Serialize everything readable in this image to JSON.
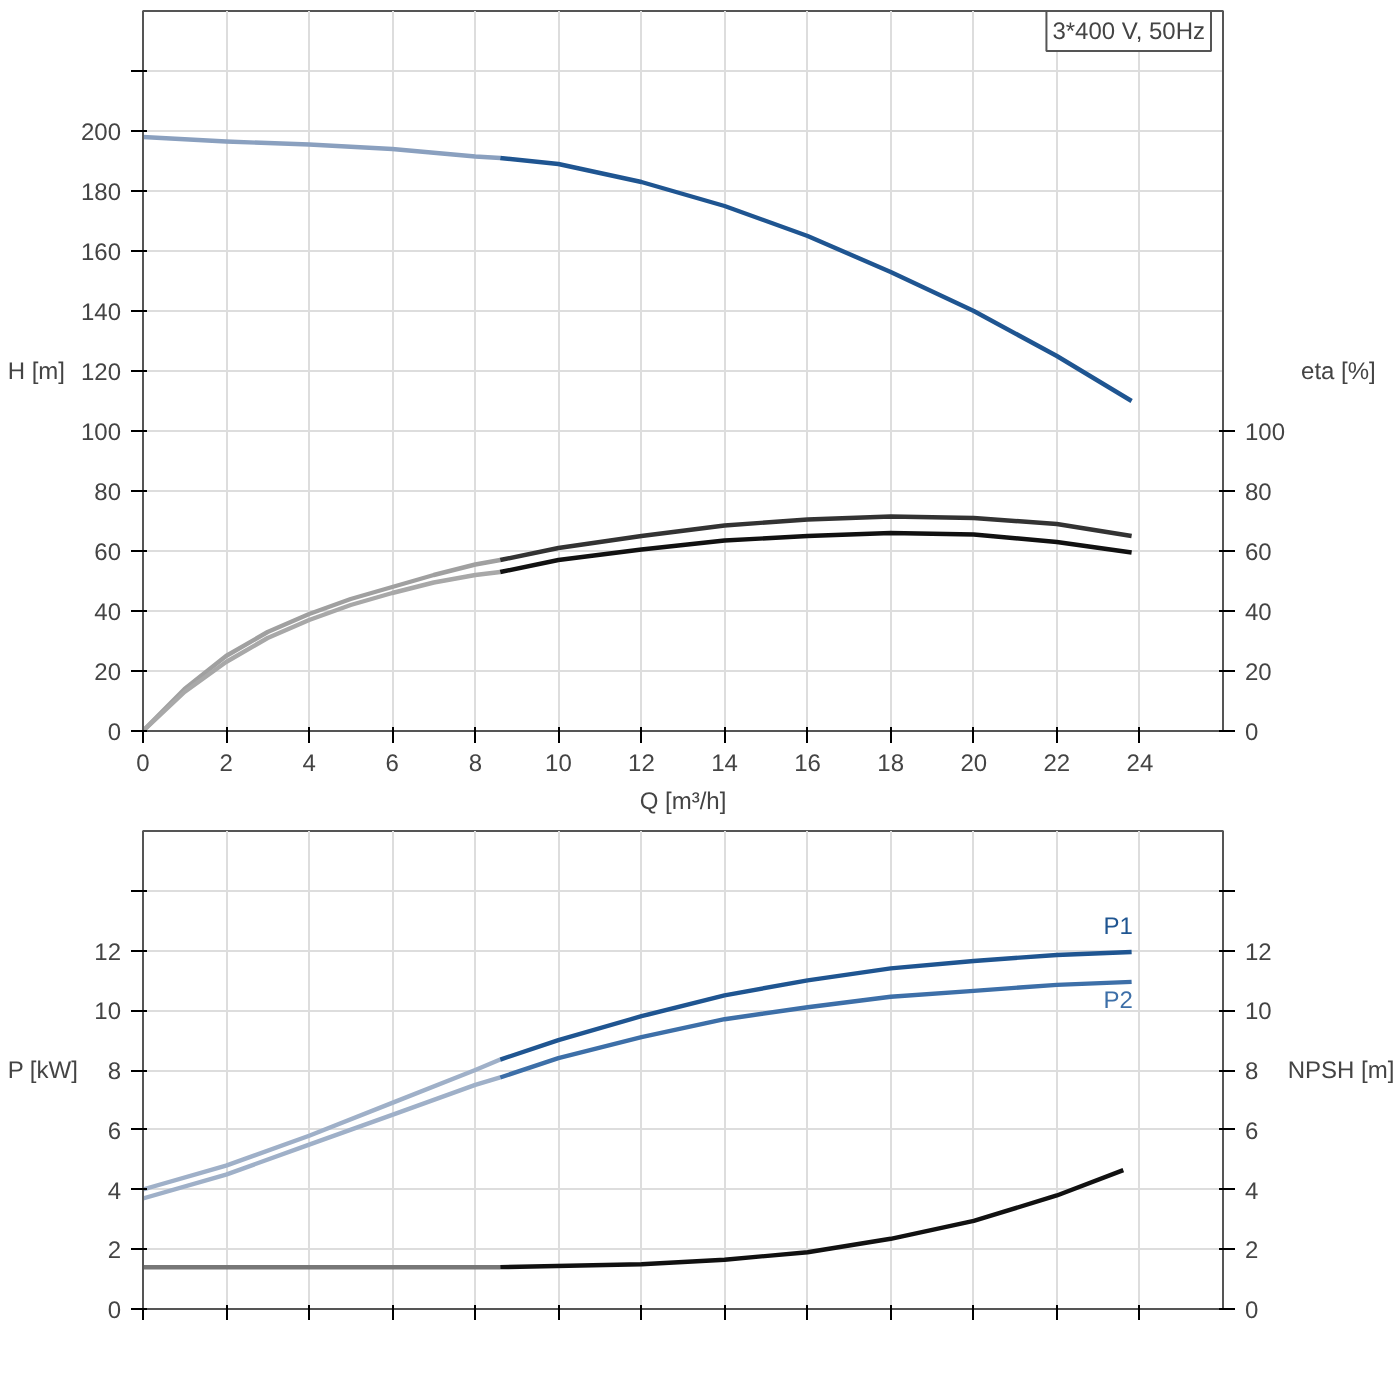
{
  "chart_data": [
    {
      "type": "line",
      "xlabel": "Q [m³/h]",
      "ylabel": "H [m]",
      "y2label": "eta [%]",
      "annotations": [
        "3*400 V, 50Hz"
      ],
      "xlim": [
        0,
        26
      ],
      "ylim": [
        0,
        240
      ],
      "y2lim": [
        0,
        240
      ],
      "xticks": [
        0,
        2,
        4,
        6,
        8,
        10,
        12,
        14,
        16,
        18,
        20,
        22,
        24
      ],
      "yticks": [
        0,
        20,
        40,
        60,
        80,
        100,
        120,
        140,
        160,
        180,
        200,
        {
          "value": 220,
          "label": null
        }
      ],
      "y2ticks": [
        0,
        20,
        40,
        60,
        80,
        100
      ],
      "grid": true,
      "series": [
        {
          "color": "#8aa0bf",
          "x": [
            0,
            2,
            4,
            6,
            8,
            8.6
          ],
          "values": [
            198,
            196.5,
            195.5,
            194,
            191.5,
            191
          ]
        },
        {
          "color": "#1f5591",
          "x": [
            8.6,
            10,
            12,
            14,
            16,
            18,
            20,
            22,
            23.8
          ],
          "values": [
            191,
            189,
            183,
            175,
            165,
            153,
            140,
            125,
            110
          ]
        },
        {
          "color": "#a0a0a0",
          "x": [
            0,
            1,
            2,
            3,
            4,
            5,
            6,
            7,
            8,
            8.6
          ],
          "values": [
            0,
            14,
            25,
            33,
            39,
            44,
            48,
            52,
            55.5,
            57
          ]
        },
        {
          "color": "#333333",
          "x": [
            8.6,
            10,
            12,
            14,
            16,
            18,
            20,
            22,
            23.8
          ],
          "values": [
            57,
            61,
            65,
            68.5,
            70.5,
            71.5,
            71,
            69,
            65
          ]
        },
        {
          "color": "#a8a8a8",
          "x": [
            0,
            1,
            2,
            3,
            4,
            5,
            6,
            7,
            8,
            8.6
          ],
          "values": [
            0,
            13,
            23,
            31,
            37,
            42,
            46,
            49.5,
            52,
            53
          ]
        },
        {
          "color": "#111111",
          "x": [
            8.6,
            10,
            12,
            14,
            16,
            18,
            20,
            22,
            23.8
          ],
          "values": [
            53,
            57,
            60.5,
            63.5,
            65,
            66,
            65.5,
            63,
            59.5
          ]
        }
      ]
    },
    {
      "type": "line",
      "ylabel": "P [kW]",
      "y2label": "NPSH [m]",
      "xlim": [
        0,
        26
      ],
      "ylim": [
        0,
        16
      ],
      "y2lim": [
        0,
        16
      ],
      "tick_labels": "y",
      "xticks": [
        0,
        2,
        4,
        6,
        8,
        10,
        12,
        14,
        16,
        18,
        20,
        22,
        24
      ],
      "yticks": [
        0,
        2,
        4,
        6,
        8,
        10,
        12,
        {
          "value": 14,
          "label": null
        }
      ],
      "y2ticks": [
        0,
        2,
        4,
        6,
        8,
        10,
        12,
        {
          "value": 14,
          "label": null
        }
      ],
      "grid": true,
      "series": [
        {
          "color": "#9fb0c8",
          "x": [
            0,
            2,
            4,
            6,
            8,
            8.6
          ],
          "values": [
            4.0,
            4.8,
            5.8,
            6.9,
            8.0,
            8.35
          ]
        },
        {
          "name": "P1",
          "color": "#1f5591",
          "x": [
            8.6,
            10,
            12,
            14,
            16,
            18,
            20,
            22,
            23.8
          ],
          "values": [
            8.35,
            9.0,
            9.8,
            10.5,
            11.0,
            11.4,
            11.65,
            11.85,
            11.95
          ]
        },
        {
          "color": "#9fb0c8",
          "x": [
            0,
            2,
            4,
            6,
            8,
            8.6
          ],
          "values": [
            3.7,
            4.5,
            5.5,
            6.5,
            7.5,
            7.75
          ]
        },
        {
          "name": "P2",
          "color": "#3d6fa8",
          "x": [
            8.6,
            10,
            12,
            14,
            16,
            18,
            20,
            22,
            23.8
          ],
          "values": [
            7.75,
            8.4,
            9.1,
            9.7,
            10.1,
            10.45,
            10.65,
            10.85,
            10.95
          ]
        },
        {
          "color": "#777777",
          "x": [
            0,
            4,
            8,
            8.6
          ],
          "values": [
            1.4,
            1.4,
            1.4,
            1.4
          ]
        },
        {
          "color": "#111111",
          "x": [
            8.6,
            12,
            14,
            16,
            18,
            20,
            22,
            23.6
          ],
          "values": [
            1.4,
            1.5,
            1.65,
            1.9,
            2.35,
            2.95,
            3.8,
            4.65
          ]
        }
      ]
    }
  ]
}
